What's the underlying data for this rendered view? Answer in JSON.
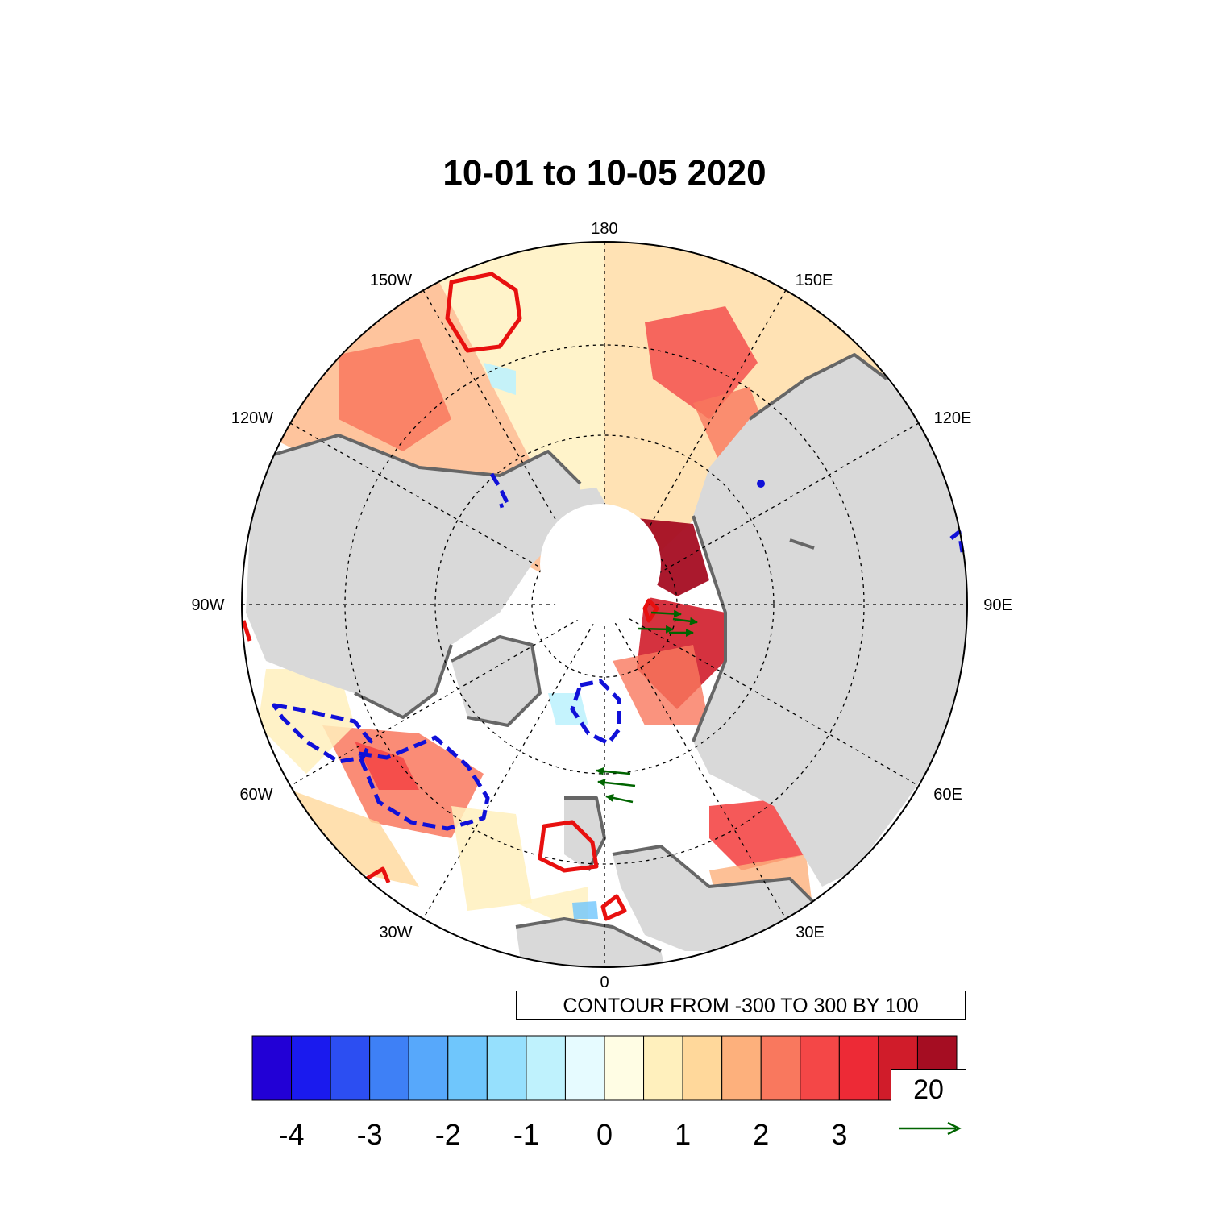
{
  "title": "10-01 to 10-05 2020",
  "map": {
    "projection": "north-polar-stereographic",
    "longitude_labels": [
      "180",
      "150E",
      "120E",
      "90E",
      "60E",
      "30E",
      "0",
      "30W",
      "60W",
      "90W",
      "120W",
      "150W"
    ],
    "contour_note": "CONTOUR FROM -300 TO 300 BY 100",
    "contour_colors": {
      "positive": "#e8100f",
      "negative": "#1010d8"
    },
    "land_color": "#d9d9d9",
    "coast_color": "#666666",
    "vector_color": "#006400"
  },
  "colorbar": {
    "colors": [
      "#2200d6",
      "#1a1aee",
      "#2c4ef2",
      "#3e80f6",
      "#57a8fb",
      "#6fc6fc",
      "#96e0fd",
      "#bff2fd",
      "#e6fbff",
      "#fffde4",
      "#fff0bd",
      "#ffd89b",
      "#fdb07c",
      "#f9785e",
      "#f44747",
      "#ed2a36",
      "#d01c2a",
      "#a50d22"
    ],
    "tick_labels": [
      "-4",
      "-3",
      "-2",
      "-1",
      "0",
      "1",
      "2",
      "3"
    ]
  },
  "reference_vector": {
    "label": "20",
    "icon": "arrow-right-icon"
  }
}
